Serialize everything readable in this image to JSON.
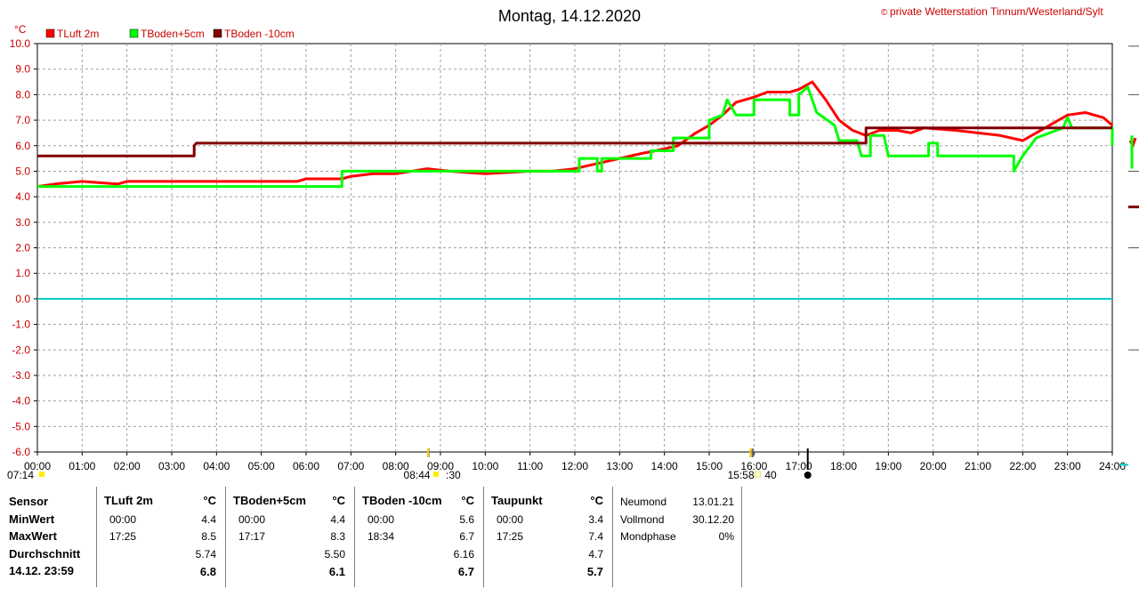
{
  "title": "Montag, 14.12.2020",
  "copyright": "private Wetterstation Tinnum/Westerland/Sylt",
  "copyright_symbol": "©",
  "unit_label": "°C",
  "chart_data": {
    "type": "line",
    "x_ticks": [
      "00:00",
      "01:00",
      "02:00",
      "03:00",
      "04:00",
      "05:00",
      "06:00",
      "07:00",
      "08:00",
      "09:00",
      "10:00",
      "11:00",
      "12:00",
      "13:00",
      "14:00",
      "15:00",
      "16:00",
      "17:00",
      "18:00",
      "19:00",
      "20:00",
      "21:00",
      "22:00",
      "23:00",
      "24:00"
    ],
    "y_ticks": [
      "10.0",
      "9.0",
      "8.0",
      "7.0",
      "6.0",
      "5.0",
      "4.0",
      "3.0",
      "2.0",
      "1.0",
      "0.0",
      "-1.0",
      "-2.0",
      "-3.0",
      "-4.0",
      "-5.0",
      "-6.0"
    ],
    "xlim": [
      0,
      24
    ],
    "ylim": [
      -6,
      10
    ],
    "grid": true,
    "legend_position": "top-left",
    "zero_line": 0,
    "series": [
      {
        "name": "TLuft 2m",
        "color": "#ff0000",
        "points": [
          [
            0,
            4.4
          ],
          [
            0.4,
            4.5
          ],
          [
            1,
            4.6
          ],
          [
            1.8,
            4.5
          ],
          [
            2,
            4.6
          ],
          [
            3,
            4.6
          ],
          [
            4,
            4.6
          ],
          [
            5,
            4.6
          ],
          [
            5.8,
            4.6
          ],
          [
            6,
            4.7
          ],
          [
            6.8,
            4.7
          ],
          [
            7,
            4.8
          ],
          [
            7.5,
            4.9
          ],
          [
            8,
            4.9
          ],
          [
            8.7,
            5.1
          ],
          [
            9.2,
            5.0
          ],
          [
            10,
            4.9
          ],
          [
            11,
            5.0
          ],
          [
            11.5,
            5.0
          ],
          [
            12,
            5.1
          ],
          [
            12.5,
            5.3
          ],
          [
            13,
            5.5
          ],
          [
            13.5,
            5.7
          ],
          [
            13.8,
            5.8
          ],
          [
            14.3,
            6.0
          ],
          [
            14.7,
            6.5
          ],
          [
            15,
            6.8
          ],
          [
            15.3,
            7.2
          ],
          [
            15.6,
            7.7
          ],
          [
            16,
            7.9
          ],
          [
            16.3,
            8.1
          ],
          [
            16.8,
            8.1
          ],
          [
            17,
            8.2
          ],
          [
            17.3,
            8.5
          ],
          [
            17.6,
            7.8
          ],
          [
            17.9,
            7.0
          ],
          [
            18.2,
            6.6
          ],
          [
            18.5,
            6.4
          ],
          [
            18.8,
            6.6
          ],
          [
            19.2,
            6.6
          ],
          [
            19.5,
            6.5
          ],
          [
            19.8,
            6.7
          ],
          [
            20.5,
            6.6
          ],
          [
            21,
            6.5
          ],
          [
            21.5,
            6.4
          ],
          [
            22,
            6.2
          ],
          [
            22.3,
            6.5
          ],
          [
            22.6,
            6.8
          ],
          [
            23,
            7.2
          ],
          [
            23.4,
            7.3
          ],
          [
            23.8,
            7.1
          ],
          [
            24,
            6.8
          ]
        ]
      },
      {
        "name": "TBoden+5cm",
        "color": "#00ff00",
        "points": [
          [
            0,
            4.4
          ],
          [
            6.8,
            4.4
          ],
          [
            6.8,
            5.0
          ],
          [
            12.1,
            5.0
          ],
          [
            12.1,
            5.5
          ],
          [
            12.5,
            5.5
          ],
          [
            12.5,
            5.0
          ],
          [
            12.6,
            5.0
          ],
          [
            12.6,
            5.5
          ],
          [
            13.7,
            5.5
          ],
          [
            13.7,
            5.8
          ],
          [
            14.2,
            5.8
          ],
          [
            14.2,
            6.3
          ],
          [
            15,
            6.3
          ],
          [
            15,
            7.0
          ],
          [
            15.3,
            7.2
          ],
          [
            15.4,
            7.8
          ],
          [
            15.6,
            7.2
          ],
          [
            16,
            7.2
          ],
          [
            16,
            7.8
          ],
          [
            16.8,
            7.8
          ],
          [
            16.8,
            7.2
          ],
          [
            17,
            7.2
          ],
          [
            17,
            8.0
          ],
          [
            17.2,
            8.3
          ],
          [
            17.4,
            7.3
          ],
          [
            17.8,
            6.8
          ],
          [
            17.9,
            6.2
          ],
          [
            18.3,
            6.2
          ],
          [
            18.4,
            5.6
          ],
          [
            18.6,
            5.6
          ],
          [
            18.6,
            6.4
          ],
          [
            18.9,
            6.4
          ],
          [
            19,
            5.6
          ],
          [
            19.9,
            5.6
          ],
          [
            19.9,
            6.1
          ],
          [
            20.1,
            6.1
          ],
          [
            20.1,
            5.6
          ],
          [
            21.8,
            5.6
          ],
          [
            21.8,
            5.0
          ],
          [
            22,
            5.6
          ],
          [
            22.3,
            6.3
          ],
          [
            22.9,
            6.7
          ],
          [
            23,
            7.1
          ],
          [
            23.1,
            6.7
          ],
          [
            24,
            6.7
          ],
          [
            24,
            6.0
          ]
        ]
      },
      {
        "name": "TBoden -10cm",
        "color": "#800000",
        "points": [
          [
            0,
            5.6
          ],
          [
            3.5,
            5.6
          ],
          [
            3.5,
            6.0
          ],
          [
            3.55,
            6.1
          ],
          [
            18.5,
            6.1
          ],
          [
            18.5,
            6.7
          ],
          [
            24,
            6.7
          ]
        ]
      }
    ],
    "markers": [
      {
        "time": "07:14",
        "label": "07:14"
      },
      {
        "time": "08:44",
        "label": "08:44"
      },
      {
        "time": "09:00",
        "label": ":30"
      },
      {
        "time": "15:58",
        "label": "15:58"
      },
      {
        "time": "16:00",
        "label": "40"
      }
    ]
  },
  "stats": {
    "row_labels": [
      "Sensor",
      "MinWert",
      "MaxWert",
      "Durchschnitt",
      "14.12. 23:59"
    ],
    "sensors": [
      {
        "name": "TLuft 2m",
        "unit": "°C",
        "min_time": "00:00",
        "min": "4.4",
        "max_time": "17:25",
        "max": "8.5",
        "avg": "5.74",
        "current": "6.8"
      },
      {
        "name": "TBoden+5cm",
        "unit": "°C",
        "min_time": "00:00",
        "min": "4.4",
        "max_time": "17:17",
        "max": "8.3",
        "avg": "5.50",
        "current": "6.1"
      },
      {
        "name": "TBoden -10cm",
        "unit": "°C",
        "min_time": "00:00",
        "min": "5.6",
        "max_time": "18:34",
        "max": "6.7",
        "avg": "6.16",
        "current": "6.7"
      },
      {
        "name": "Taupunkt",
        "unit": "°C",
        "min_time": "00:00",
        "min": "3.4",
        "max_time": "17:25",
        "max": "7.4",
        "avg": "4.7",
        "current": "5.7"
      }
    ],
    "moon": [
      {
        "label": "Neumond",
        "value": "13.01.21"
      },
      {
        "label": "Vollmond",
        "value": "30.12.20"
      },
      {
        "label": "Mondphase",
        "value": "0%"
      }
    ]
  }
}
